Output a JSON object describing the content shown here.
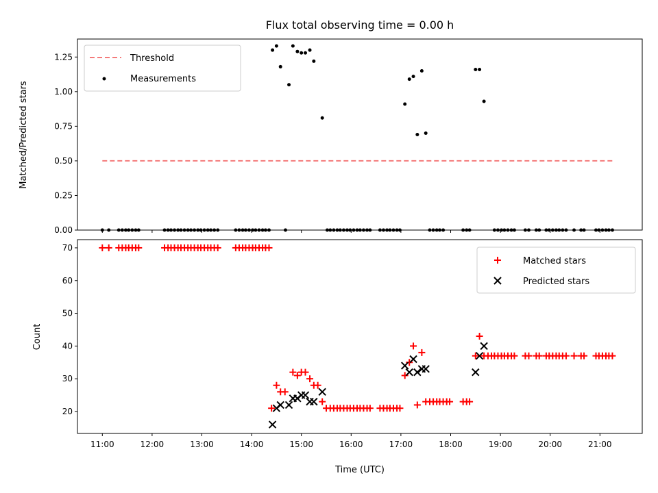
{
  "title": "Flux total observing time = 0.00 h",
  "colors": {
    "threshold": "#f47a7a",
    "measurement": "#000000",
    "matched": "#ff0000",
    "predicted": "#000000"
  },
  "chart_data": [
    {
      "type": "scatter",
      "ylabel": "Matched/Predicted stars",
      "ylim": [
        0,
        1.38
      ],
      "yticks": [
        0,
        0.25,
        0.5,
        0.75,
        1.0,
        1.25
      ],
      "ytick_labels": [
        "0.00",
        "0.25",
        "0.50",
        "0.75",
        "1.00",
        "1.25"
      ],
      "threshold": {
        "value": 0.5,
        "x_range": [
          11.0,
          21.3
        ]
      },
      "legend": {
        "threshold_label": "Threshold",
        "measurements_label": "Measurements",
        "position": "upper left"
      },
      "measurements_zero_x": [
        11.0,
        11.13,
        11.33,
        11.4,
        11.47,
        11.53,
        11.6,
        11.67,
        11.73,
        12.25,
        12.32,
        12.38,
        12.45,
        12.52,
        12.58,
        12.65,
        12.72,
        12.78,
        12.85,
        12.92,
        12.98,
        13.05,
        13.12,
        13.18,
        13.25,
        13.32,
        13.68,
        13.75,
        13.82,
        13.88,
        13.95,
        14.02,
        14.08,
        14.15,
        14.22,
        14.28,
        14.35,
        14.68,
        15.52,
        15.58,
        15.65,
        15.72,
        15.78,
        15.85,
        15.92,
        15.98,
        16.05,
        16.12,
        16.18,
        16.25,
        16.32,
        16.38,
        16.58,
        16.65,
        16.72,
        16.78,
        16.85,
        16.92,
        16.98,
        17.58,
        17.65,
        17.72,
        17.78,
        17.85,
        18.25,
        18.32,
        18.38,
        18.88,
        18.95,
        19.02,
        19.08,
        19.15,
        19.22,
        19.28,
        19.5,
        19.57,
        19.72,
        19.78,
        19.92,
        19.98,
        20.05,
        20.12,
        20.18,
        20.25,
        20.32,
        20.48,
        20.62,
        20.68,
        20.92,
        20.98,
        21.05,
        21.12,
        21.18,
        21.25
      ],
      "measurements_points": [
        {
          "x": 14.42,
          "y": 1.3
        },
        {
          "x": 14.5,
          "y": 1.33
        },
        {
          "x": 14.58,
          "y": 1.18
        },
        {
          "x": 14.75,
          "y": 1.05
        },
        {
          "x": 14.83,
          "y": 1.33
        },
        {
          "x": 14.92,
          "y": 1.29
        },
        {
          "x": 15.0,
          "y": 1.28
        },
        {
          "x": 15.08,
          "y": 1.28
        },
        {
          "x": 15.17,
          "y": 1.3
        },
        {
          "x": 15.25,
          "y": 1.22
        },
        {
          "x": 15.42,
          "y": 0.81
        },
        {
          "x": 17.08,
          "y": 0.91
        },
        {
          "x": 17.17,
          "y": 1.09
        },
        {
          "x": 17.25,
          "y": 1.11
        },
        {
          "x": 17.33,
          "y": 0.69
        },
        {
          "x": 17.42,
          "y": 1.15
        },
        {
          "x": 17.5,
          "y": 0.7
        },
        {
          "x": 18.5,
          "y": 1.16
        },
        {
          "x": 18.58,
          "y": 1.16
        },
        {
          "x": 18.67,
          "y": 0.93
        }
      ]
    },
    {
      "type": "scatter",
      "xlabel": "Time (UTC)",
      "ylabel": "Count",
      "xlim": [
        10.5,
        21.85
      ],
      "ylim": [
        13.3,
        72.5
      ],
      "xticks": [
        11,
        12,
        13,
        14,
        15,
        16,
        17,
        18,
        19,
        20,
        21
      ],
      "xtick_labels": [
        "11:00",
        "12:00",
        "13:00",
        "14:00",
        "15:00",
        "16:00",
        "17:00",
        "18:00",
        "19:00",
        "20:00",
        "21:00"
      ],
      "yticks": [
        20,
        30,
        40,
        50,
        60,
        70
      ],
      "ytick_labels": [
        "20",
        "30",
        "40",
        "50",
        "60",
        "70"
      ],
      "legend": {
        "matched_label": "Matched stars",
        "predicted_label": "Predicted stars",
        "position": "upper right"
      },
      "matched_stars": [
        [
          11.0,
          70
        ],
        [
          11.13,
          70
        ],
        [
          11.33,
          70
        ],
        [
          11.4,
          70
        ],
        [
          11.47,
          70
        ],
        [
          11.53,
          70
        ],
        [
          11.6,
          70
        ],
        [
          11.67,
          70
        ],
        [
          11.73,
          70
        ],
        [
          12.25,
          70
        ],
        [
          12.32,
          70
        ],
        [
          12.38,
          70
        ],
        [
          12.45,
          70
        ],
        [
          12.52,
          70
        ],
        [
          12.58,
          70
        ],
        [
          12.65,
          70
        ],
        [
          12.72,
          70
        ],
        [
          12.78,
          70
        ],
        [
          12.85,
          70
        ],
        [
          12.92,
          70
        ],
        [
          12.98,
          70
        ],
        [
          13.05,
          70
        ],
        [
          13.12,
          70
        ],
        [
          13.18,
          70
        ],
        [
          13.25,
          70
        ],
        [
          13.32,
          70
        ],
        [
          13.68,
          70
        ],
        [
          13.75,
          70
        ],
        [
          13.82,
          70
        ],
        [
          13.88,
          70
        ],
        [
          13.95,
          70
        ],
        [
          14.02,
          70
        ],
        [
          14.08,
          70
        ],
        [
          14.15,
          70
        ],
        [
          14.22,
          70
        ],
        [
          14.28,
          70
        ],
        [
          14.35,
          70
        ],
        [
          14.4,
          21
        ],
        [
          14.5,
          28
        ],
        [
          14.58,
          26
        ],
        [
          14.67,
          26
        ],
        [
          14.83,
          32
        ],
        [
          14.92,
          31
        ],
        [
          15.0,
          32
        ],
        [
          15.08,
          32
        ],
        [
          15.17,
          30
        ],
        [
          15.25,
          28
        ],
        [
          15.33,
          28
        ],
        [
          15.42,
          23
        ],
        [
          15.5,
          21
        ],
        [
          15.58,
          21
        ],
        [
          15.65,
          21
        ],
        [
          15.72,
          21
        ],
        [
          15.78,
          21
        ],
        [
          15.85,
          21
        ],
        [
          15.92,
          21
        ],
        [
          15.98,
          21
        ],
        [
          16.05,
          21
        ],
        [
          16.12,
          21
        ],
        [
          16.18,
          21
        ],
        [
          16.25,
          21
        ],
        [
          16.32,
          21
        ],
        [
          16.38,
          21
        ],
        [
          16.58,
          21
        ],
        [
          16.65,
          21
        ],
        [
          16.72,
          21
        ],
        [
          16.78,
          21
        ],
        [
          16.85,
          21
        ],
        [
          16.92,
          21
        ],
        [
          16.98,
          21
        ],
        [
          17.08,
          31
        ],
        [
          17.17,
          35
        ],
        [
          17.25,
          40
        ],
        [
          17.33,
          22
        ],
        [
          17.42,
          38
        ],
        [
          17.5,
          23
        ],
        [
          17.58,
          23
        ],
        [
          17.65,
          23
        ],
        [
          17.72,
          23
        ],
        [
          17.78,
          23
        ],
        [
          17.85,
          23
        ],
        [
          17.92,
          23
        ],
        [
          17.98,
          23
        ],
        [
          18.25,
          23
        ],
        [
          18.32,
          23
        ],
        [
          18.38,
          23
        ],
        [
          18.5,
          37
        ],
        [
          18.58,
          43
        ],
        [
          18.67,
          37
        ],
        [
          18.75,
          37
        ],
        [
          18.82,
          37
        ],
        [
          18.88,
          37
        ],
        [
          18.95,
          37
        ],
        [
          19.02,
          37
        ],
        [
          19.08,
          37
        ],
        [
          19.15,
          37
        ],
        [
          19.22,
          37
        ],
        [
          19.28,
          37
        ],
        [
          19.5,
          37
        ],
        [
          19.57,
          37
        ],
        [
          19.72,
          37
        ],
        [
          19.78,
          37
        ],
        [
          19.92,
          37
        ],
        [
          19.98,
          37
        ],
        [
          20.05,
          37
        ],
        [
          20.12,
          37
        ],
        [
          20.18,
          37
        ],
        [
          20.25,
          37
        ],
        [
          20.32,
          37
        ],
        [
          20.48,
          37
        ],
        [
          20.62,
          37
        ],
        [
          20.68,
          37
        ],
        [
          20.92,
          37
        ],
        [
          20.98,
          37
        ],
        [
          21.05,
          37
        ],
        [
          21.12,
          37
        ],
        [
          21.18,
          37
        ],
        [
          21.25,
          37
        ]
      ],
      "predicted_stars": [
        [
          14.42,
          16
        ],
        [
          14.5,
          21
        ],
        [
          14.58,
          22
        ],
        [
          14.75,
          22
        ],
        [
          14.83,
          24
        ],
        [
          14.92,
          24
        ],
        [
          15.0,
          25
        ],
        [
          15.08,
          25
        ],
        [
          15.17,
          23
        ],
        [
          15.25,
          23
        ],
        [
          15.42,
          26
        ],
        [
          17.08,
          34
        ],
        [
          17.17,
          32
        ],
        [
          17.25,
          36
        ],
        [
          17.33,
          32
        ],
        [
          17.42,
          33
        ],
        [
          17.5,
          33
        ],
        [
          18.5,
          32
        ],
        [
          18.58,
          37
        ],
        [
          18.67,
          40
        ]
      ]
    }
  ]
}
